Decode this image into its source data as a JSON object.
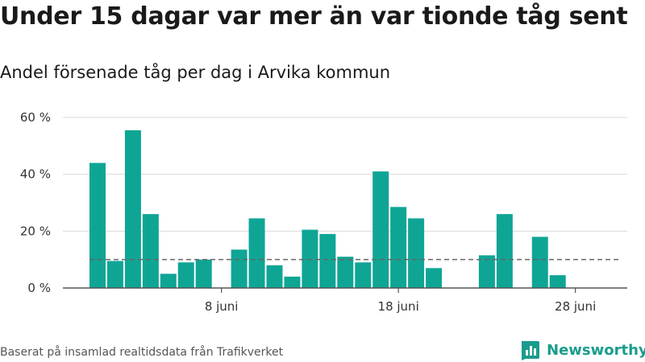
{
  "title": "Under 15 dagar var mer än var tionde tåg sent",
  "subtitle": "Andel försenade tåg per dag i Arvika kommun",
  "source": "Baserat på insamlad realtidsdata från Trafikverket",
  "brand": {
    "name": "Newsworthy",
    "icon": "newsworthy-logo-icon",
    "color": "#1a9c8c"
  },
  "colors": {
    "bar": "#0fa595",
    "reference": "#666666",
    "grid": "#d9d9d9",
    "axis": "#555555"
  },
  "chart_data": {
    "type": "bar",
    "x_unit": "day of June",
    "x": [
      1,
      2,
      3,
      4,
      5,
      6,
      7,
      8,
      9,
      10,
      11,
      12,
      13,
      14,
      15,
      16,
      17,
      18,
      19,
      20,
      21,
      22,
      23,
      24,
      25,
      26,
      27,
      28,
      29,
      30
    ],
    "values": [
      44,
      9.5,
      55.5,
      26,
      5,
      9,
      10,
      0,
      13.5,
      24.5,
      8,
      4,
      20.5,
      19,
      11,
      9,
      41,
      28.5,
      24.5,
      7,
      0,
      0,
      11.5,
      26,
      0,
      18,
      4.5,
      0,
      0,
      0
    ],
    "reference_line": {
      "value": 10,
      "style": "dashed"
    },
    "ylim": [
      0,
      60
    ],
    "y_ticks": [
      "0 %",
      "20 %",
      "40 %",
      "60 %"
    ],
    "y_tick_values": [
      0,
      20,
      40,
      60
    ],
    "x_ticks": [
      "8 juni",
      "18 juni",
      "28 juni"
    ],
    "x_tick_values": [
      8,
      18,
      28
    ],
    "xlim": [
      1,
      30
    ],
    "grid": true,
    "legend": "none"
  }
}
